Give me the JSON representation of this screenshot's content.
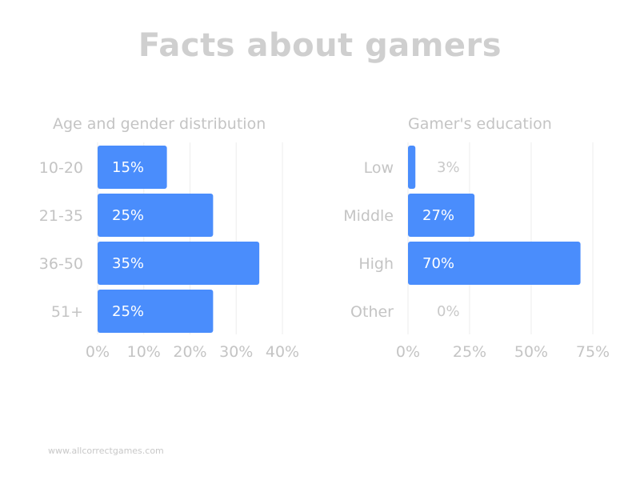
{
  "title": "Facts about gamers",
  "footer": "www.allcorrectgames.com",
  "colors": {
    "bar": "#4a8dfc",
    "text_muted": "#c4c4c4",
    "grid": "#eeeeee",
    "bar_label": "#ffffff",
    "outside_label": "#c9c9c9"
  },
  "chart_data": [
    {
      "type": "bar",
      "orientation": "horizontal",
      "title": "Age and gender distribution",
      "categories": [
        "10-20",
        "21-35",
        "36-50",
        "51+"
      ],
      "values": [
        15,
        25,
        35,
        25
      ],
      "data_labels": [
        "15%",
        "25%",
        "35%",
        "25%"
      ],
      "xlim": [
        0,
        40
      ],
      "ticks": [
        0,
        10,
        20,
        30,
        40
      ],
      "tick_labels": [
        "0%",
        "10%",
        "20%",
        "30%",
        "40%"
      ],
      "grid": true
    },
    {
      "type": "bar",
      "orientation": "horizontal",
      "title": "Gamer's education",
      "categories": [
        "Low",
        "Middle",
        "High",
        "Other"
      ],
      "values": [
        3,
        27,
        70,
        0
      ],
      "data_labels": [
        "3%",
        "27%",
        "70%",
        "0%"
      ],
      "xlim": [
        0,
        75
      ],
      "ticks": [
        0,
        25,
        50,
        75
      ],
      "tick_labels": [
        "0%",
        "25%",
        "50%",
        "75%"
      ],
      "grid": true
    }
  ]
}
